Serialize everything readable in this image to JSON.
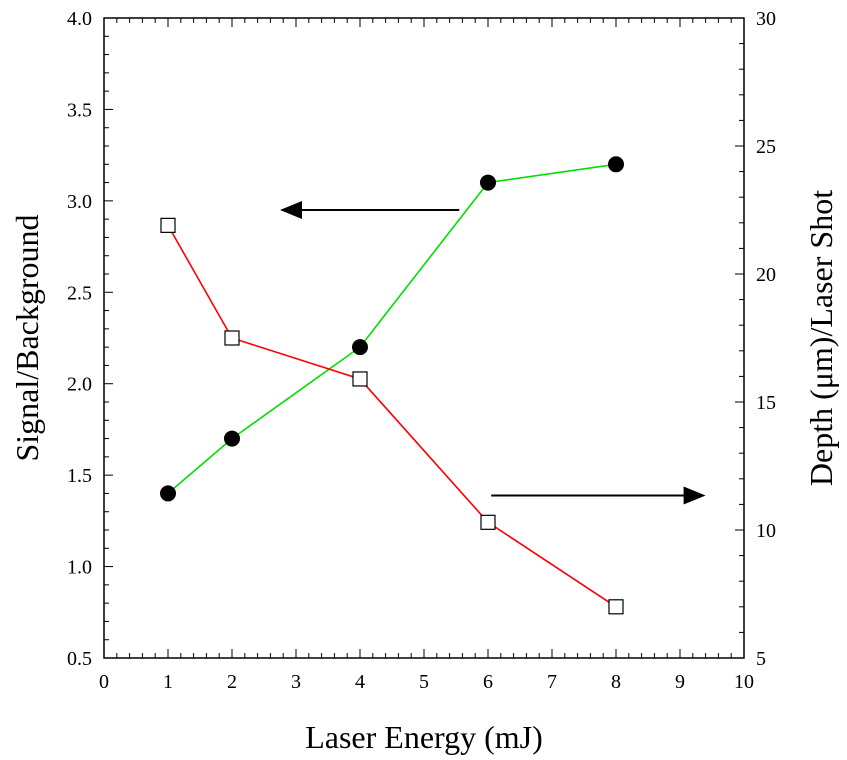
{
  "chart_data": {
    "type": "line",
    "title": "",
    "xlabel": "Laser Energy (mJ)",
    "ylabel": "Signal/Background",
    "y2label": "Depth (μm)/Laser Shot",
    "xlim": [
      0,
      10
    ],
    "ylim": [
      0.5,
      4.0
    ],
    "y2lim": [
      5,
      30
    ],
    "grid": false,
    "x_tick_labels": [
      "0",
      "1",
      "2",
      "3",
      "4",
      "5",
      "6",
      "7",
      "8",
      "9",
      "10"
    ],
    "y_tick_labels": [
      "0.5",
      "1.0",
      "1.5",
      "2.0",
      "2.5",
      "3.0",
      "3.5",
      "4.0"
    ],
    "y2_tick_labels": [
      "5",
      "10",
      "15",
      "20",
      "25",
      "30"
    ],
    "x_category_positions": [
      1,
      2,
      4,
      6,
      8
    ],
    "series": [
      {
        "axis": "left",
        "marker": "filled-circle",
        "line_color": "#00e000",
        "x": [
          1,
          2,
          4,
          6,
          8
        ],
        "values": [
          1.4,
          1.7,
          2.2,
          3.1,
          3.2
        ]
      },
      {
        "axis": "right",
        "marker": "open-square",
        "line_color": "#ff0000",
        "x": [
          1,
          2,
          4,
          6,
          8
        ],
        "values": [
          21.9,
          17.5,
          15.9,
          10.3,
          7.0
        ]
      }
    ],
    "annotations": [
      {
        "type": "arrow",
        "direction": "left",
        "points_to_axis": "left"
      },
      {
        "type": "arrow",
        "direction": "right",
        "points_to_axis": "right"
      }
    ]
  }
}
